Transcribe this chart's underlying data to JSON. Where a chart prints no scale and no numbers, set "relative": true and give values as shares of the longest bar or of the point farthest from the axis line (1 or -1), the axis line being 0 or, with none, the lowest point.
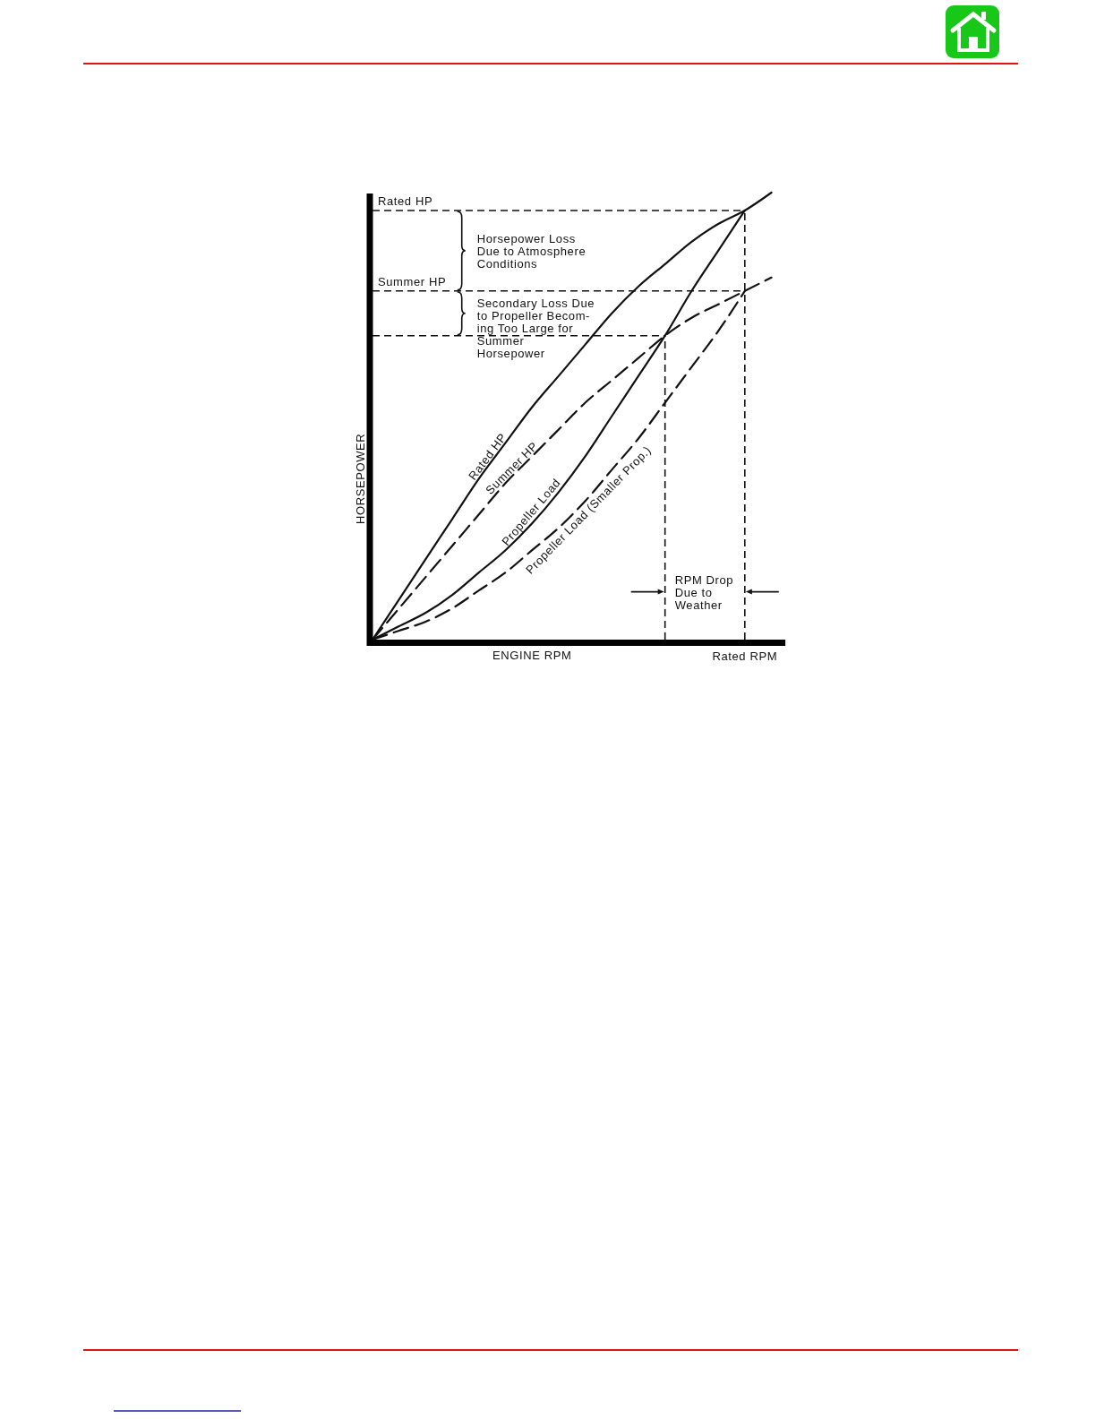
{
  "chart_data": {
    "type": "line",
    "relative": true,
    "xlabel": "ENGINE RPM",
    "ylabel": "HORSEPOWER",
    "line_style": "solid",
    "categories": [
      null,
      null,
      null,
      null,
      null,
      null,
      null,
      null,
      null,
      null,
      null,
      null,
      null,
      null,
      null,
      null
    ],
    "series": [
      {
        "name": "Rated HP",
        "color": "#111111",
        "values": [
          0,
          0.09,
          0.18,
          0.27,
          0.36,
          0.44,
          0.52,
          0.59,
          0.66,
          0.73,
          0.79,
          0.84,
          0.89,
          0.93,
          0.96,
          1.0
        ]
      },
      {
        "name": "Summer HP",
        "color": "#111111",
        "line_style": "dashed",
        "values": [
          0,
          0.07,
          0.14,
          0.21,
          0.28,
          0.35,
          0.41,
          0.47,
          0.53,
          0.58,
          0.63,
          0.68,
          0.72,
          0.75,
          0.78,
          0.81
        ]
      },
      {
        "name": "Propeller Load",
        "color": "#111111",
        "values": [
          0,
          0.03,
          0.06,
          0.1,
          0.15,
          0.2,
          0.26,
          0.33,
          0.41,
          0.5,
          0.59,
          0.68,
          0.78,
          0.87,
          0.96,
          null
        ]
      },
      {
        "name": "Propeller Load (Smaller Prop.)",
        "color": "#111111",
        "line_style": "dashed",
        "values": [
          0,
          0.02,
          0.04,
          0.07,
          0.11,
          0.15,
          0.2,
          0.25,
          0.31,
          0.38,
          0.45,
          0.53,
          0.61,
          0.69,
          0.78,
          null
        ]
      }
    ],
    "ref_lines": [
      {
        "axis": "y",
        "value": 0.96,
        "label": "Rated HP",
        "line_style": "dashed"
      },
      {
        "axis": "y",
        "value": 0.78,
        "label": "Summer HP",
        "line_style": "dashed"
      },
      {
        "axis": "y",
        "value": 0.68,
        "line_style": "dashed"
      }
    ],
    "annotations": [
      "Horsepower Loss\nDue to Atmosphere\nConditions",
      "Secondary Loss Due\nto Propeller Becom-\ning Too Large for\nSummer\nHorsepower",
      "RPM Drop\nDue to\nWeather",
      "Rated RPM"
    ]
  }
}
